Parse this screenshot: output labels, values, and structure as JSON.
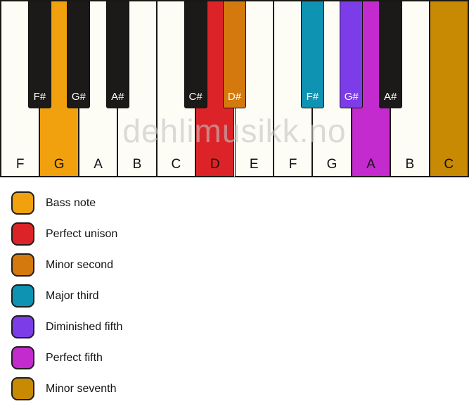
{
  "keyboard": {
    "watermark": "dehlimusikk.no",
    "key_colors": {
      "white": "#FDFCF5",
      "black": "#1C1A19"
    },
    "white_keys": [
      {
        "label": "F",
        "color": null
      },
      {
        "label": "G",
        "color": "bass_note"
      },
      {
        "label": "A",
        "color": null
      },
      {
        "label": "B",
        "color": null
      },
      {
        "label": "C",
        "color": null
      },
      {
        "label": "D",
        "color": "perfect_unison"
      },
      {
        "label": "E",
        "color": null
      },
      {
        "label": "F",
        "color": null
      },
      {
        "label": "G",
        "color": null
      },
      {
        "label": "A",
        "color": "perfect_fifth"
      },
      {
        "label": "B",
        "color": null
      },
      {
        "label": "C",
        "color": "minor_seventh"
      }
    ],
    "black_keys": [
      {
        "label": "F#",
        "boundary": 1,
        "color": null
      },
      {
        "label": "G#",
        "boundary": 2,
        "color": null
      },
      {
        "label": "A#",
        "boundary": 3,
        "color": null
      },
      {
        "label": "C#",
        "boundary": 5,
        "color": null
      },
      {
        "label": "D#",
        "boundary": 6,
        "color": "minor_second"
      },
      {
        "label": "F#",
        "boundary": 8,
        "color": "major_third"
      },
      {
        "label": "G#",
        "boundary": 9,
        "color": "diminished_fifth"
      },
      {
        "label": "A#",
        "boundary": 10,
        "color": null
      }
    ]
  },
  "colors": {
    "bass_note": "#F1A10D",
    "perfect_unison": "#DC2428",
    "minor_second": "#D3790D",
    "major_third": "#0E93B2",
    "diminished_fifth": "#7C3CE8",
    "perfect_fifth": "#C32BCE",
    "minor_seventh": "#C98A03"
  },
  "legend": [
    {
      "label": "Bass note",
      "color": "bass_note"
    },
    {
      "label": "Perfect unison",
      "color": "perfect_unison"
    },
    {
      "label": "Minor second",
      "color": "minor_second"
    },
    {
      "label": "Major third",
      "color": "major_third"
    },
    {
      "label": "Diminished fifth",
      "color": "diminished_fifth"
    },
    {
      "label": "Perfect fifth",
      "color": "perfect_fifth"
    },
    {
      "label": "Minor seventh",
      "color": "minor_seventh"
    }
  ]
}
